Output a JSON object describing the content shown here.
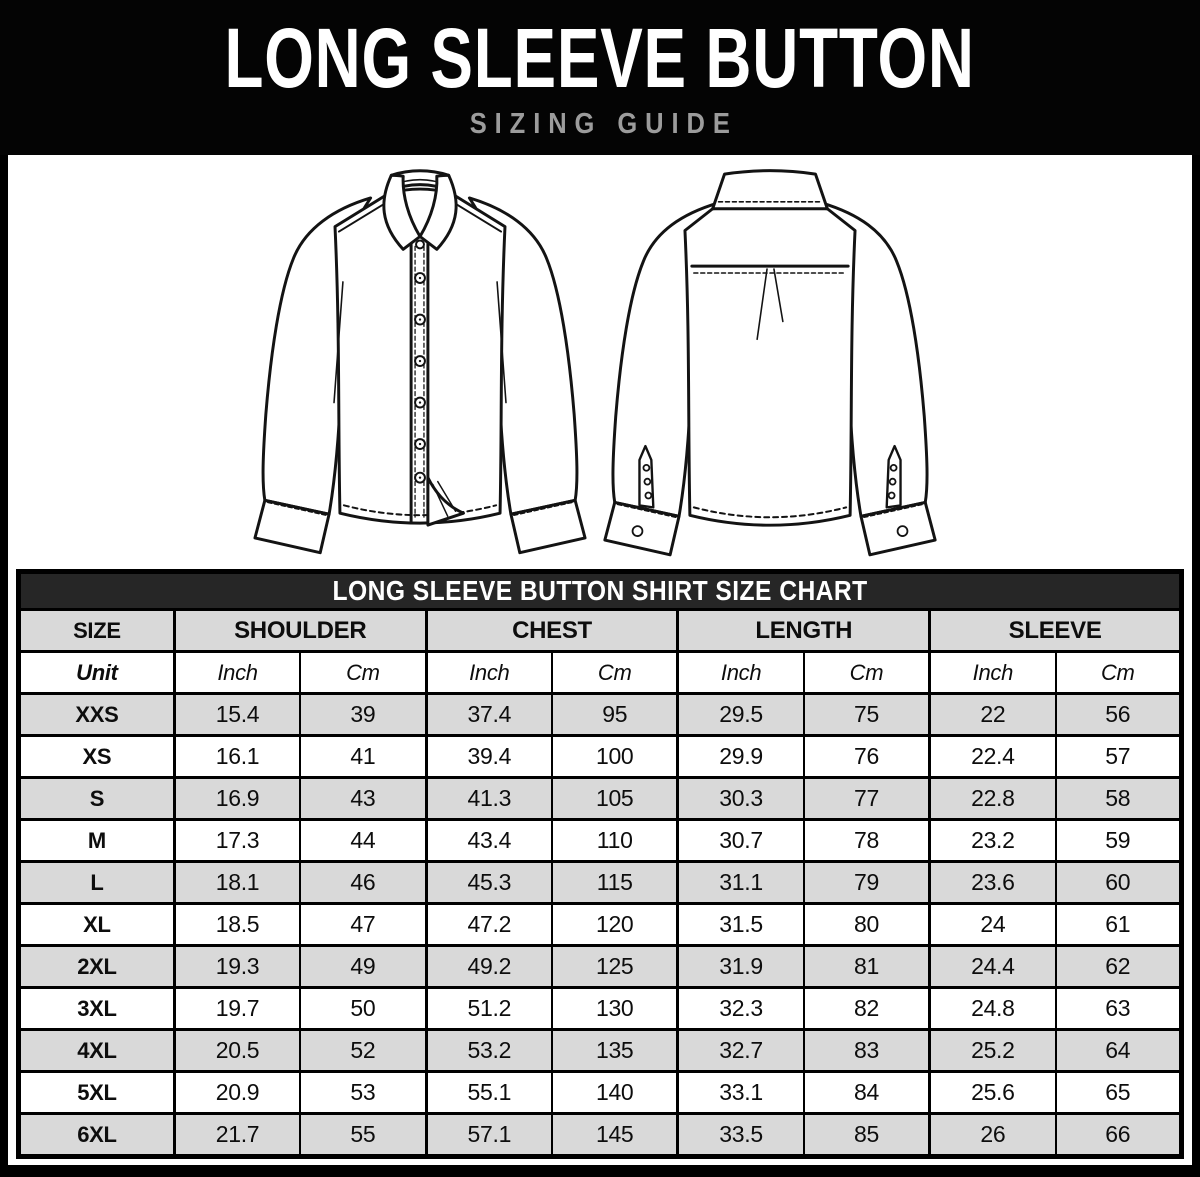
{
  "masthead": {
    "title": "LONG SLEEVE BUTTON",
    "subtitle": "SIZING GUIDE"
  },
  "illustrations": {
    "front_icon": "shirt-front-line-art",
    "back_icon": "shirt-back-line-art"
  },
  "table": {
    "title": "LONG SLEEVE BUTTON SHIRT SIZE CHART",
    "size_header": "SIZE",
    "groups": [
      {
        "label": "SHOULDER"
      },
      {
        "label": "CHEST"
      },
      {
        "label": "LENGTH"
      },
      {
        "label": "SLEEVE"
      }
    ],
    "unit_label": "Unit",
    "unit_headers": [
      "Inch",
      "Cm",
      "Inch",
      "Cm",
      "Inch",
      "Cm",
      "Inch",
      "Cm"
    ],
    "rows": [
      {
        "size": "XXS",
        "values": [
          "15.4",
          "39",
          "37.4",
          "95",
          "29.5",
          "75",
          "22",
          "56"
        ]
      },
      {
        "size": "XS",
        "values": [
          "16.1",
          "41",
          "39.4",
          "100",
          "29.9",
          "76",
          "22.4",
          "57"
        ]
      },
      {
        "size": "S",
        "values": [
          "16.9",
          "43",
          "41.3",
          "105",
          "30.3",
          "77",
          "22.8",
          "58"
        ]
      },
      {
        "size": "M",
        "values": [
          "17.3",
          "44",
          "43.4",
          "110",
          "30.7",
          "78",
          "23.2",
          "59"
        ]
      },
      {
        "size": "L",
        "values": [
          "18.1",
          "46",
          "45.3",
          "115",
          "31.1",
          "79",
          "23.6",
          "60"
        ]
      },
      {
        "size": "XL",
        "values": [
          "18.5",
          "47",
          "47.2",
          "120",
          "31.5",
          "80",
          "24",
          "61"
        ]
      },
      {
        "size": "2XL",
        "values": [
          "19.3",
          "49",
          "49.2",
          "125",
          "31.9",
          "81",
          "24.4",
          "62"
        ]
      },
      {
        "size": "3XL",
        "values": [
          "19.7",
          "50",
          "51.2",
          "130",
          "32.3",
          "82",
          "24.8",
          "63"
        ]
      },
      {
        "size": "4XL",
        "values": [
          "20.5",
          "52",
          "53.2",
          "135",
          "32.7",
          "83",
          "25.2",
          "64"
        ]
      },
      {
        "size": "5XL",
        "values": [
          "20.9",
          "53",
          "55.1",
          "140",
          "33.1",
          "84",
          "25.6",
          "65"
        ]
      },
      {
        "size": "6XL",
        "values": [
          "21.7",
          "55",
          "57.1",
          "145",
          "33.5",
          "85",
          "26",
          "66"
        ]
      }
    ]
  },
  "colors": {
    "page_background": "#000000",
    "panel_background": "#ffffff",
    "table_title_bar": "#262626",
    "row_shade": "#d9d9d9",
    "header_shade": "#d9d9d9",
    "title_text": "#ffffff",
    "subtitle_text": "#9c9c9c",
    "line_art": "#131313"
  }
}
